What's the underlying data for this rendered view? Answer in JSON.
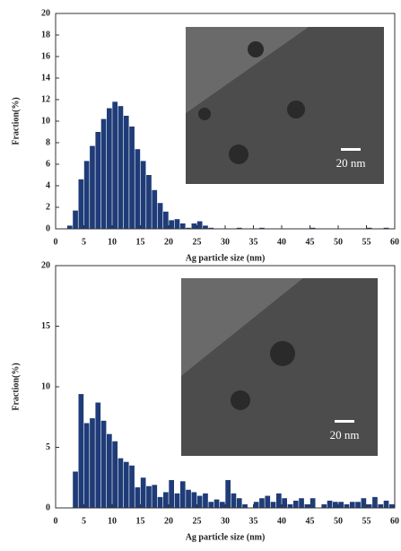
{
  "chart_data": [
    {
      "type": "histogram",
      "xlabel": "Ag particle size (nm)",
      "ylabel": "Fraction(%)",
      "annotation": "20 nm",
      "color": "#1f3c78",
      "bins": [
        2,
        3,
        4,
        5,
        6,
        7,
        8,
        9,
        10,
        11,
        12,
        13,
        14,
        15,
        16,
        17,
        18,
        19,
        20,
        21,
        22,
        23,
        24,
        25,
        26,
        27,
        28,
        29,
        30,
        31,
        32,
        33,
        34,
        35,
        36,
        37,
        38,
        39,
        40,
        41,
        42,
        43,
        44,
        45,
        46,
        47,
        48,
        49,
        50,
        51,
        52,
        53,
        54,
        55,
        56,
        57,
        58,
        59,
        60
      ],
      "values": [
        0.3,
        1.7,
        4.6,
        6.3,
        7.7,
        9.0,
        10.2,
        11.2,
        11.8,
        11.4,
        10.5,
        9.5,
        7.4,
        6.3,
        5.0,
        3.6,
        2.4,
        1.6,
        0.8,
        0.9,
        0.5,
        0.1,
        0.5,
        0.7,
        0.3,
        0.1,
        0,
        0,
        0,
        0,
        0.1,
        0,
        0,
        0,
        0.1,
        0,
        0,
        0,
        0,
        0,
        0,
        0,
        0,
        0.1,
        0,
        0,
        0,
        0,
        0,
        0,
        0,
        0,
        0,
        0.1,
        0,
        0,
        0.1,
        0
      ],
      "xlim": [
        0,
        60
      ],
      "xticks": [
        0,
        5,
        10,
        15,
        20,
        25,
        30,
        35,
        40,
        45,
        50,
        55,
        60
      ],
      "ylim": [
        0,
        20
      ],
      "yticks": [
        0,
        2,
        4,
        6,
        8,
        10,
        12,
        14,
        16,
        18,
        20
      ]
    },
    {
      "type": "histogram",
      "xlabel": "Ag particle size (nm)",
      "ylabel": "Fraction(%)",
      "annotation": "20 nm",
      "color": "#1f3c78",
      "bins": [
        2,
        3,
        4,
        5,
        6,
        7,
        8,
        9,
        10,
        11,
        12,
        13,
        14,
        15,
        16,
        17,
        18,
        19,
        20,
        21,
        22,
        23,
        24,
        25,
        26,
        27,
        28,
        29,
        30,
        31,
        32,
        33,
        34,
        35,
        36,
        37,
        38,
        39,
        40,
        41,
        42,
        43,
        44,
        45,
        46,
        47,
        48,
        49,
        50,
        51,
        52,
        53,
        54,
        55,
        56,
        57,
        58,
        59,
        60
      ],
      "values": [
        0,
        3.0,
        9.4,
        7.0,
        7.4,
        8.7,
        7.2,
        6.1,
        5.5,
        4.1,
        3.8,
        3.5,
        1.7,
        2.5,
        1.8,
        1.9,
        0.9,
        1.3,
        2.3,
        1.2,
        2.2,
        1.5,
        1.3,
        1.0,
        1.2,
        0.5,
        0.7,
        0.5,
        2.3,
        1.2,
        0.8,
        0.3,
        0,
        0.5,
        0.8,
        1.0,
        0.5,
        1.2,
        0.8,
        0.3,
        0.6,
        0.8,
        0.3,
        0.8,
        0,
        0.3,
        0.6,
        0.5,
        0.5,
        0.3,
        0.5,
        0.5,
        0.8,
        0.3,
        0.9,
        0.3,
        0.6,
        0.3
      ],
      "xlim": [
        0,
        60
      ],
      "xticks": [
        0,
        5,
        10,
        15,
        20,
        25,
        30,
        35,
        40,
        45,
        50,
        55,
        60
      ],
      "ylim": [
        0,
        20
      ],
      "yticks": [
        0,
        5,
        10,
        15,
        20
      ]
    }
  ]
}
